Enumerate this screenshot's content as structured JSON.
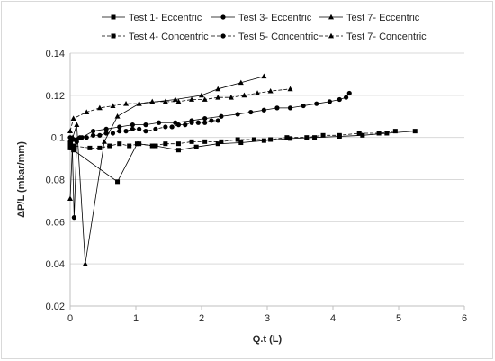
{
  "chart_data": {
    "type": "line",
    "xlabel": "Q.t (L)",
    "ylabel": "ΔP/L (mbar/mm)",
    "xlim": [
      0,
      6
    ],
    "ylim": [
      0.02,
      0.14
    ],
    "xticks": [
      "0",
      "1",
      "2",
      "3",
      "4",
      "5",
      "6"
    ],
    "yticks": [
      "0.02",
      "0.04",
      "0.06",
      "0.08",
      "0.1",
      "0.12",
      "0.14"
    ],
    "grid": "horizontal",
    "legend_position": "top",
    "series": [
      {
        "name": "Test 1- Eccentric",
        "marker": "square",
        "dash": "solid",
        "x": [
          0.0,
          0.02,
          0.05,
          0.72,
          1.02,
          1.3,
          1.65,
          1.92,
          2.25,
          2.6,
          2.95,
          3.35,
          3.72,
          4.1,
          4.45,
          4.82,
          5.25
        ],
        "y": [
          0.097,
          0.095,
          0.094,
          0.079,
          0.097,
          0.096,
          0.094,
          0.0955,
          0.097,
          0.0975,
          0.0985,
          0.0995,
          0.1,
          0.1005,
          0.101,
          0.102,
          0.103
        ]
      },
      {
        "name": "Test 3- Eccentric",
        "marker": "circle",
        "dash": "solid",
        "x": [
          0.0,
          0.03,
          0.06,
          0.1,
          0.18,
          0.35,
          0.55,
          0.75,
          0.95,
          1.15,
          1.35,
          1.6,
          1.85,
          2.05,
          2.3,
          2.55,
          2.75,
          2.95,
          3.15,
          3.35,
          3.55,
          3.75,
          3.95,
          4.1,
          4.2,
          4.25
        ],
        "y": [
          0.1,
          0.099,
          0.062,
          0.098,
          0.1,
          0.103,
          0.104,
          0.105,
          0.106,
          0.106,
          0.107,
          0.107,
          0.108,
          0.109,
          0.11,
          0.111,
          0.112,
          0.113,
          0.114,
          0.114,
          0.115,
          0.116,
          0.117,
          0.118,
          0.119,
          0.121
        ]
      },
      {
        "name": "Test 7- Eccentric",
        "marker": "triangle",
        "dash": "solid",
        "x": [
          0.0,
          0.04,
          0.1,
          0.23,
          0.52,
          0.72,
          1.05,
          1.6,
          2.0,
          2.25,
          2.6,
          2.95
        ],
        "y": [
          0.071,
          0.1,
          0.106,
          0.04,
          0.098,
          0.11,
          0.116,
          0.118,
          0.12,
          0.123,
          0.126,
          0.129
        ]
      },
      {
        "name": "Test 4- Concentric",
        "marker": "square",
        "dash": "dashed",
        "x": [
          0.0,
          0.05,
          0.3,
          0.45,
          0.6,
          0.75,
          0.9,
          1.05,
          1.25,
          1.45,
          1.65,
          1.85,
          2.05,
          2.3,
          2.55,
          2.8,
          3.05,
          3.3,
          3.6,
          3.85,
          4.1,
          4.4,
          4.7,
          4.95
        ],
        "y": [
          0.095,
          0.096,
          0.095,
          0.095,
          0.096,
          0.097,
          0.096,
          0.097,
          0.096,
          0.097,
          0.097,
          0.098,
          0.098,
          0.098,
          0.099,
          0.099,
          0.099,
          0.1,
          0.1,
          0.101,
          0.101,
          0.102,
          0.102,
          0.103
        ]
      },
      {
        "name": "Test 5- Concentric",
        "marker": "circle",
        "dash": "dashed",
        "x": [
          0.0,
          0.05,
          0.1,
          0.15,
          0.25,
          0.35,
          0.45,
          0.55,
          0.65,
          0.75,
          0.85,
          0.95,
          1.05,
          1.15,
          1.3,
          1.45,
          1.55,
          1.65,
          1.75,
          1.85,
          1.95,
          2.05,
          2.15,
          2.25
        ],
        "y": [
          0.098,
          0.099,
          0.099,
          0.1,
          0.1,
          0.101,
          0.101,
          0.102,
          0.102,
          0.103,
          0.103,
          0.104,
          0.104,
          0.103,
          0.104,
          0.105,
          0.105,
          0.106,
          0.106,
          0.107,
          0.107,
          0.107,
          0.108,
          0.108
        ]
      },
      {
        "name": "Test 7- Concentric",
        "marker": "triangle",
        "dash": "dashed",
        "x": [
          0.0,
          0.05,
          0.25,
          0.45,
          0.65,
          0.85,
          1.05,
          1.25,
          1.45,
          1.65,
          1.85,
          2.05,
          2.25,
          2.45,
          2.65,
          2.85,
          3.05,
          3.35
        ],
        "y": [
          0.103,
          0.109,
          0.112,
          0.114,
          0.115,
          0.116,
          0.116,
          0.117,
          0.117,
          0.117,
          0.118,
          0.118,
          0.119,
          0.119,
          0.12,
          0.121,
          0.122,
          0.123
        ]
      }
    ]
  }
}
